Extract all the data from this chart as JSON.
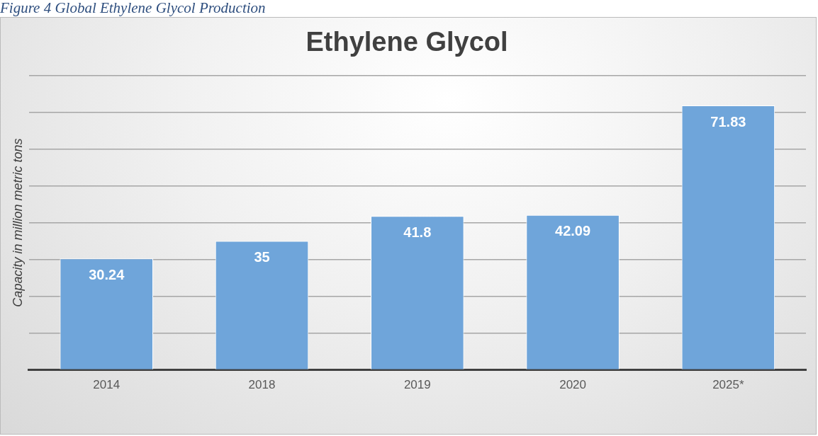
{
  "chart_data": {
    "type": "bar",
    "title": "Ethylene Glycol",
    "ylabel": "Capacity in million metric tons",
    "categories": [
      "2014",
      "2018",
      "2019",
      "2020",
      "2025*"
    ],
    "values": [
      30.24,
      35,
      41.8,
      42.09,
      71.83
    ],
    "value_labels": [
      "30.24",
      "35",
      "41.8",
      "42.09",
      "71.83"
    ],
    "color": "#6fa5da",
    "ylim": [
      0,
      80
    ],
    "yticks": [
      {
        "value": 0,
        "label": null
      },
      {
        "value": 10,
        "label": null
      },
      {
        "value": 20,
        "label": null
      },
      {
        "value": 30,
        "label": null
      },
      {
        "value": 40,
        "label": null
      },
      {
        "value": 50,
        "label": null
      },
      {
        "value": 60,
        "label": null
      },
      {
        "value": 70,
        "label": null
      },
      {
        "value": 80,
        "label": null
      }
    ],
    "grid": "y",
    "tick_labels": "x",
    "annotations": [
      "Figure 4 Global Ethylene Glycol Production"
    ]
  }
}
